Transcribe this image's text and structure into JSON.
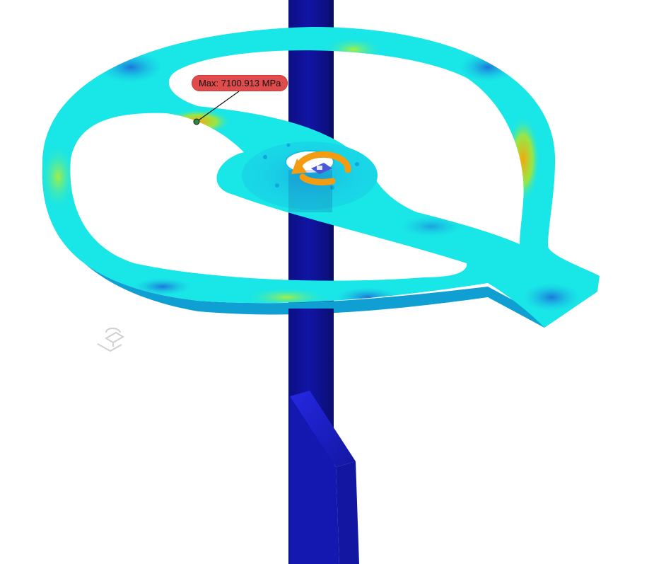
{
  "probe": {
    "max_label": "Max: 7100.913 MPa"
  },
  "scene": {
    "objects": [
      "stress-plot-frame",
      "vertical-shaft",
      "lower-bracket",
      "rotation-moment-icon",
      "fixed-constraint-icon",
      "ground-marker-icon"
    ]
  },
  "colors": {
    "shaft": "#10139a",
    "frame_base": "#19e6e6",
    "stress_high": "#f2b20f",
    "stress_mid": "#7ef050",
    "stress_low": "#1e63d8",
    "moment_arrow": "#f39c12",
    "max_badge": "#e04b4b"
  }
}
